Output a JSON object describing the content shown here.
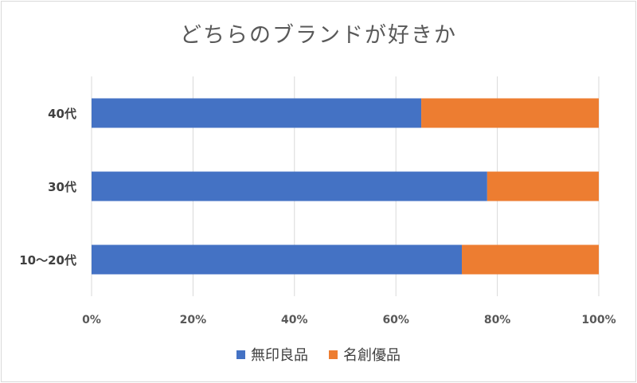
{
  "chart_data": {
    "type": "bar",
    "orientation": "horizontal",
    "stacked": "percent",
    "title": "どちらのブランドが好きか",
    "categories": [
      "40代",
      "30代",
      "10～20代"
    ],
    "series": [
      {
        "name": "無印良品",
        "color": "#4472c4",
        "values": [
          65,
          78,
          73
        ]
      },
      {
        "name": "名創優品",
        "color": "#ed7d31",
        "values": [
          35,
          22,
          27
        ]
      }
    ],
    "xticks": [
      "0%",
      "20%",
      "40%",
      "60%",
      "80%",
      "100%"
    ],
    "xlim": [
      0,
      100
    ],
    "grid": true,
    "legend": "bottom"
  }
}
